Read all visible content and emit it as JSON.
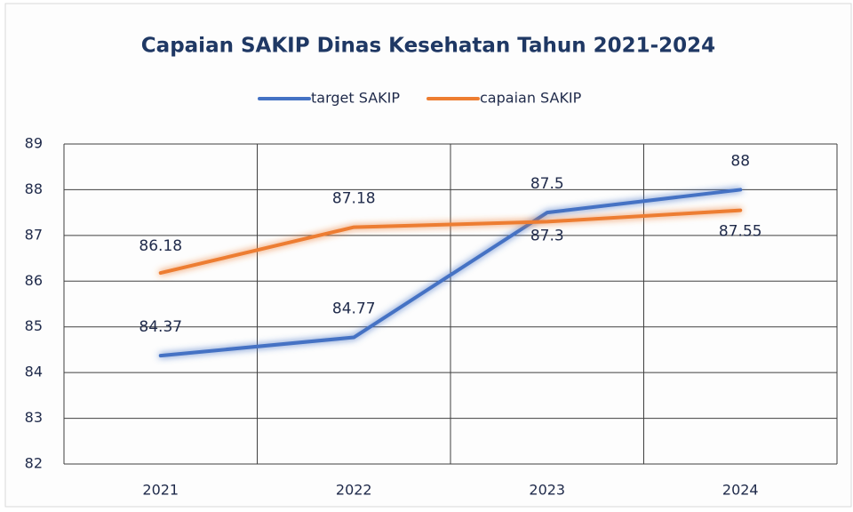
{
  "chart_data": {
    "type": "line",
    "title": "Capaian SAKIP Dinas Kesehatan Tahun 2021-2024",
    "categories": [
      "2021",
      "2022",
      "2023",
      "2024"
    ],
    "series": [
      {
        "name": "target SAKIP",
        "color": "#4472c4",
        "values": [
          84.37,
          84.77,
          87.5,
          88
        ]
      },
      {
        "name": "capaian SAKIP",
        "color": "#ed7d31",
        "values": [
          86.18,
          87.18,
          87.3,
          87.55
        ]
      }
    ],
    "ylim": [
      82,
      89
    ],
    "yticks": [
      82,
      83,
      84,
      85,
      86,
      87,
      88,
      89
    ],
    "grid": true,
    "legend": "top"
  }
}
